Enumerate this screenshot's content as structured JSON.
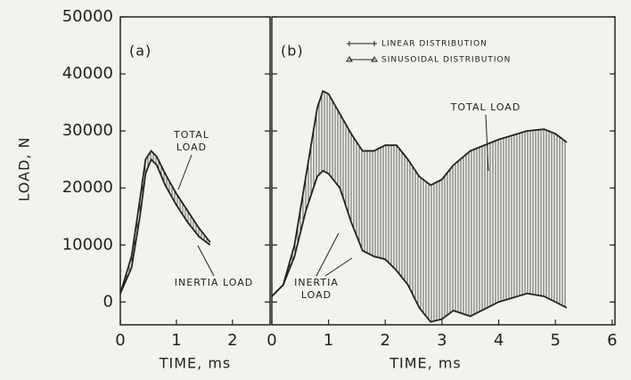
{
  "chart_data": [
    {
      "type": "line",
      "panel_label": "(a)",
      "ylabel": "LOAD, N",
      "xlabel": "TIME, ms",
      "xlim": [
        0,
        2.67
      ],
      "xticks": [
        0,
        1,
        2
      ],
      "ylim": [
        -4000,
        50000
      ],
      "yticks": [
        0,
        10000,
        20000,
        30000,
        40000,
        50000
      ],
      "x": [
        0,
        0.2,
        0.35,
        0.45,
        0.55,
        0.65,
        0.8,
        1.0,
        1.2,
        1.4,
        1.6
      ],
      "series": [
        {
          "color": "#222222",
          "values": [
            1500,
            8000,
            18000,
            25000,
            26500,
            25500,
            22500,
            19000,
            16000,
            13000,
            10500
          ]
        },
        {
          "color": "#222222",
          "values": [
            1500,
            6000,
            15000,
            22500,
            25000,
            24000,
            20500,
            17000,
            14000,
            11500,
            10000
          ]
        }
      ],
      "annotations": [
        {
          "lines": [
            "TOTAL",
            "LOAD"
          ]
        },
        {
          "lines": [
            "INERTIA LOAD"
          ]
        }
      ]
    },
    {
      "type": "line",
      "panel_label": "(b)",
      "xlabel": "TIME, ms",
      "xlim": [
        0,
        6.05
      ],
      "xticks": [
        0,
        1,
        2,
        3,
        4,
        5,
        6
      ],
      "ylim": [
        -4000,
        50000
      ],
      "yticks": [
        0,
        10000,
        20000,
        30000,
        40000,
        50000
      ],
      "x": [
        0,
        0.2,
        0.4,
        0.6,
        0.8,
        0.9,
        1.0,
        1.2,
        1.4,
        1.6,
        1.8,
        2.0,
        2.2,
        2.4,
        2.6,
        2.8,
        3.0,
        3.2,
        3.5,
        4.0,
        4.5,
        4.8,
        5.0,
        5.2
      ],
      "series": [
        {
          "color": "#222222",
          "values": [
            1000,
            3000,
            10000,
            22000,
            34000,
            37000,
            36500,
            33000,
            29500,
            26500,
            26500,
            27500,
            27500,
            25000,
            22000,
            20500,
            21500,
            24000,
            26500,
            28500,
            30000,
            30300,
            29500,
            28000
          ]
        },
        {
          "color": "#222222",
          "values": [
            1000,
            3000,
            8000,
            16000,
            22000,
            23000,
            22500,
            20000,
            14000,
            9000,
            8000,
            7500,
            5500,
            3000,
            -1000,
            -3500,
            -3000,
            -1500,
            -2500,
            0,
            1500,
            1000,
            0,
            -1000
          ]
        }
      ],
      "legend": [
        "LINEAR DISTRIBUTION",
        "SINUSOIDAL DISTRIBUTION"
      ],
      "annotations": [
        {
          "lines": [
            "TOTAL LOAD"
          ]
        },
        {
          "lines": [
            "INERTIA",
            "LOAD"
          ]
        }
      ]
    }
  ]
}
